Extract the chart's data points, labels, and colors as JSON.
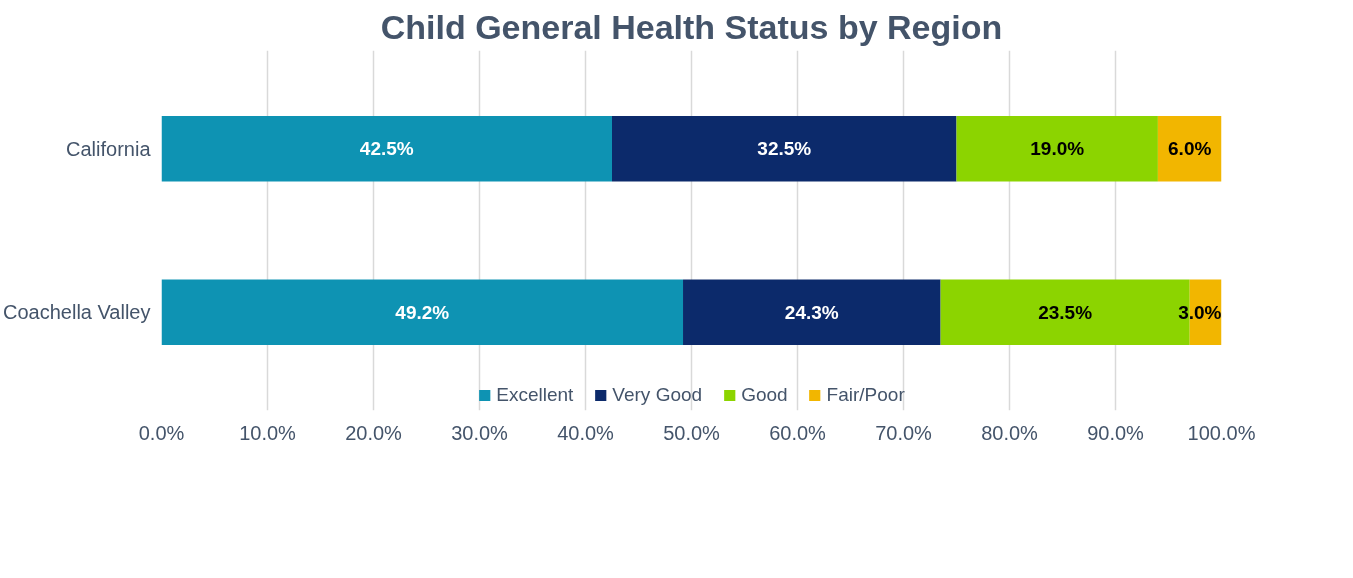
{
  "chart_data": {
    "type": "bar",
    "orientation": "horizontal",
    "stacked": true,
    "title": "Child General Health Status by Region",
    "categories": [
      "California",
      "Coachella Valley"
    ],
    "series": [
      {
        "name": "Excellent",
        "color": "#0e93b3",
        "values": [
          42.5,
          49.2
        ],
        "value_labels": [
          "42.5%",
          "49.2%"
        ]
      },
      {
        "name": "Very Good",
        "color": "#0c2a6b",
        "values": [
          32.5,
          24.3
        ],
        "value_labels": [
          "32.5%",
          "24.3%"
        ]
      },
      {
        "name": "Good",
        "color": "#8cd400",
        "values": [
          19.0,
          23.5
        ],
        "value_labels": [
          "19.0%",
          "23.5%"
        ]
      },
      {
        "name": "Fair/Poor",
        "color": "#f2b600",
        "values": [
          6.0,
          3.0
        ],
        "value_labels": [
          "6.0%",
          "3.0%"
        ]
      }
    ],
    "xlim": [
      0,
      100
    ],
    "xticks": [
      {
        "value": 0,
        "label": "0.0%"
      },
      {
        "value": 10,
        "label": "10.0%"
      },
      {
        "value": 20,
        "label": "20.0%"
      },
      {
        "value": 30,
        "label": "30.0%"
      },
      {
        "value": 40,
        "label": "40.0%"
      },
      {
        "value": 50,
        "label": "50.0%"
      },
      {
        "value": 60,
        "label": "60.0%"
      },
      {
        "value": 70,
        "label": "70.0%"
      },
      {
        "value": 80,
        "label": "80.0%"
      },
      {
        "value": 90,
        "label": "90.0%"
      },
      {
        "value": 100,
        "label": "100.0%"
      }
    ],
    "grid": "x",
    "legend": "bottom"
  }
}
